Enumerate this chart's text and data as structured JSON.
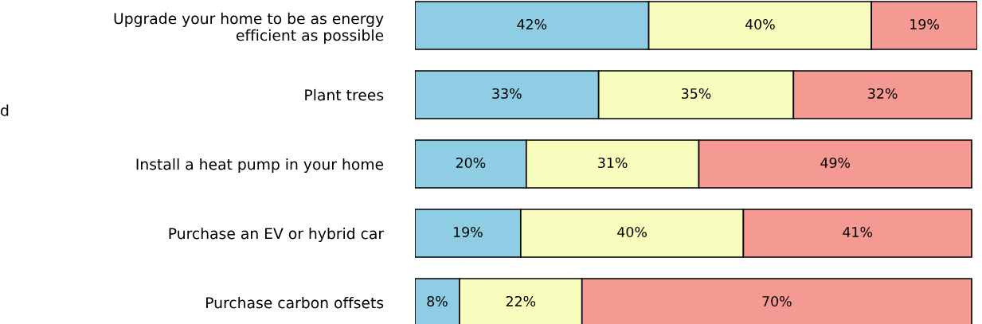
{
  "chart_data": {
    "type": "bar",
    "orientation": "horizontal",
    "stacked": true,
    "legend": false,
    "grid": false,
    "tick_labels": "y",
    "categories": [
      "Upgrade your home to be as energy\nefficient as possible",
      "Plant trees",
      "Install a heat pump in your home",
      "Purchase an EV or hybrid car",
      "Purchase carbon offsets"
    ],
    "xlim": [
      0,
      101
    ],
    "series": [
      {
        "color": "#8ecde3",
        "values": [
          42,
          33,
          20,
          19,
          8
        ],
        "value_labels": [
          "42%",
          "33%",
          "20%",
          "19%",
          "8%"
        ]
      },
      {
        "color": "#f8fcbc",
        "values": [
          40,
          35,
          31,
          40,
          22
        ],
        "value_labels": [
          "40%",
          "35%",
          "31%",
          "40%",
          "22%"
        ]
      },
      {
        "color": "#f59a92",
        "values": [
          19,
          32,
          49,
          41,
          70
        ],
        "value_labels": [
          "19%",
          "32%",
          "49%",
          "41%",
          "70%"
        ]
      }
    ],
    "annotations": [
      "d"
    ]
  }
}
